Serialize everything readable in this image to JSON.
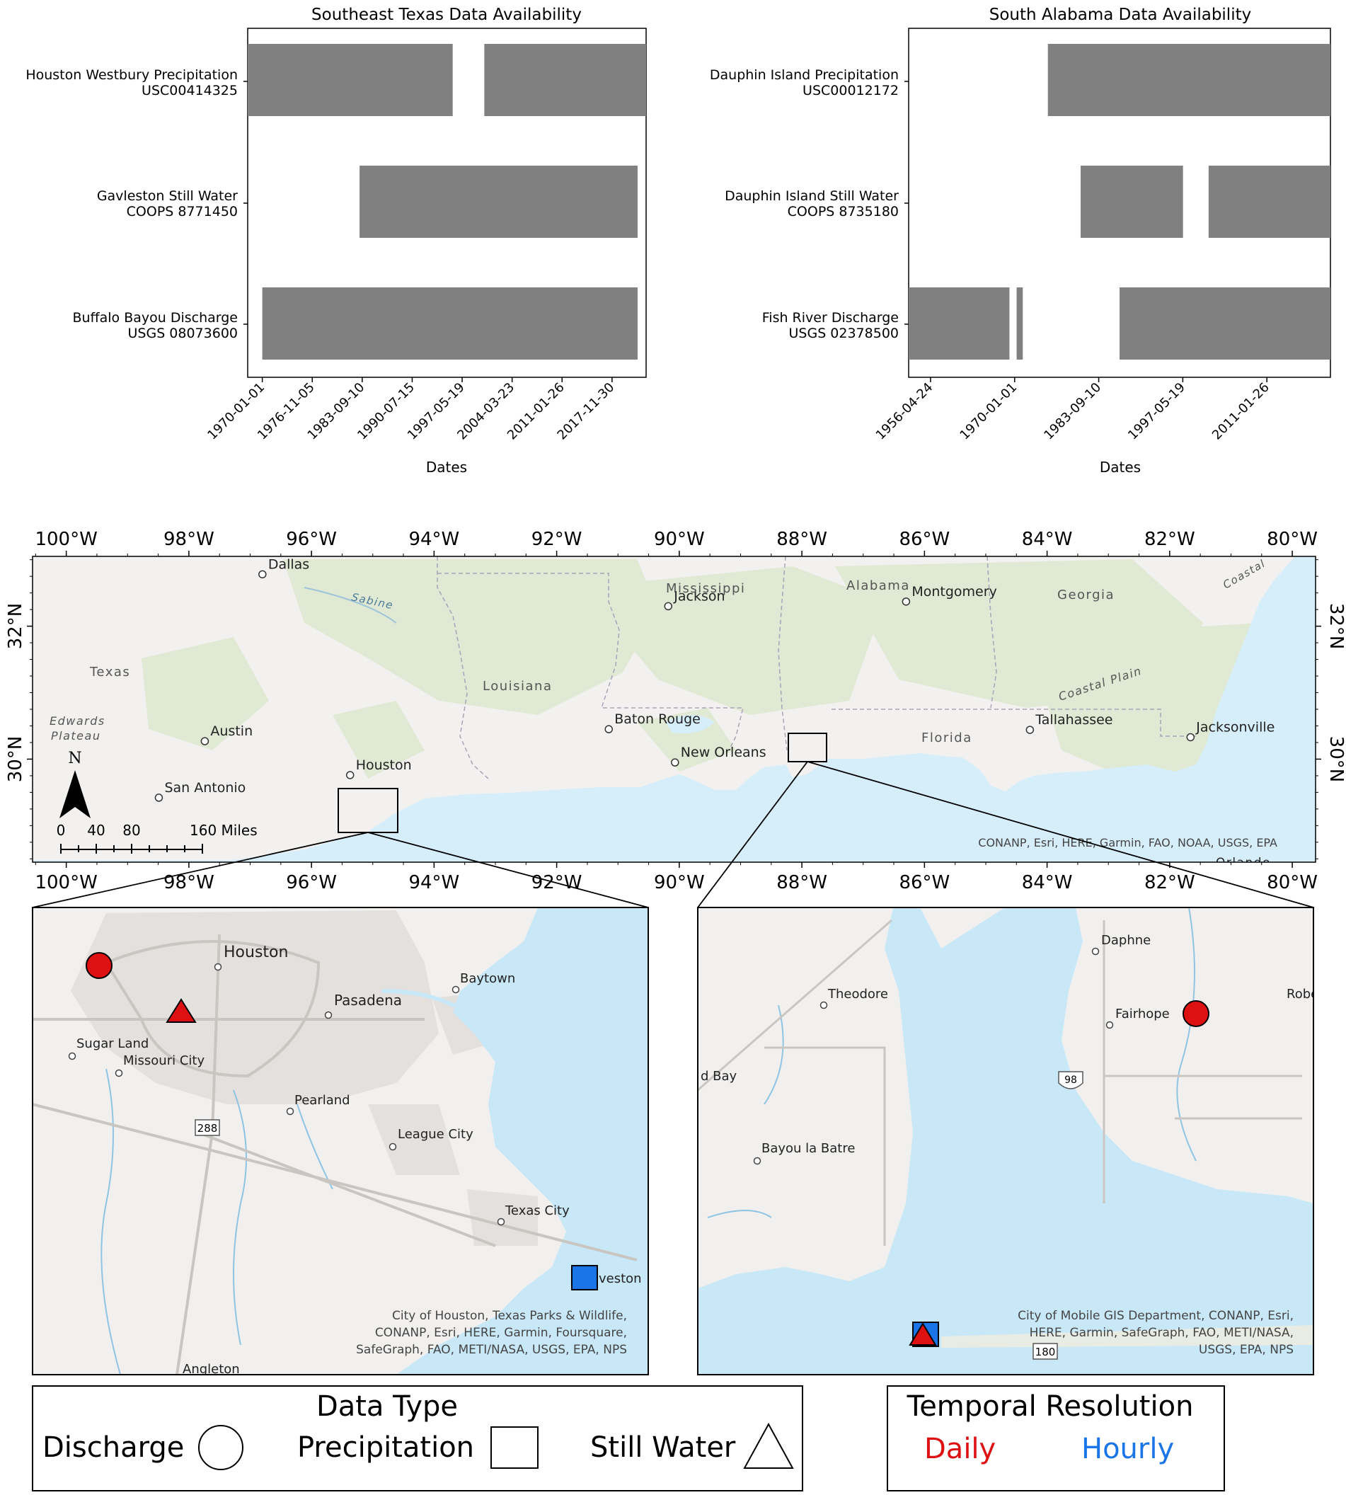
{
  "charts": [
    {
      "title": "Southeast Texas Data Availability",
      "xlabel": "Dates",
      "rows": [
        {
          "line1": "Houston Westbury Precipitation",
          "line2": "USC00414325"
        },
        {
          "line1": "Gavleston Still Water",
          "line2": "COOPS 8771450"
        },
        {
          "line1": "Buffalo Bayou Discharge",
          "line2": "USGS 08073600"
        }
      ],
      "ticks": [
        "1970-01-01",
        "1976-11-05",
        "1983-09-10",
        "1990-07-15",
        "1997-05-19",
        "2004-03-23",
        "2011-01-26",
        "2017-11-30"
      ]
    },
    {
      "title": "South Alabama Data Availability",
      "xlabel": "Dates",
      "rows": [
        {
          "line1": "Dauphin Island Precipitation",
          "line2": "USC00012172"
        },
        {
          "line1": "Dauphin Island Still Water",
          "line2": "COOPS 8735180"
        },
        {
          "line1": "Fish River Discharge",
          "line2": "USGS 02378500"
        }
      ],
      "ticks": [
        "1956-04-24",
        "1970-01-01",
        "1983-09-10",
        "1997-05-19",
        "2011-01-26"
      ]
    }
  ],
  "chart_data": [
    {
      "type": "bar",
      "orientation": "horizontal-timeline",
      "title": "Southeast Texas Data Availability",
      "xlabel": "Dates",
      "x_range": [
        "1968-01-01",
        "2022-08-01"
      ],
      "bar_color": "#808080",
      "series": [
        {
          "name": "Houston Westbury Precipitation USC00414325",
          "periods": [
            [
              "1968-01-01",
              "1996-02-01"
            ],
            [
              "2000-06-01",
              "2022-08-01"
            ]
          ]
        },
        {
          "name": "Gavleston Still Water COOPS 8771450",
          "periods": [
            [
              "1983-05-01",
              "2021-06-01"
            ]
          ]
        },
        {
          "name": "Buffalo Bayou Discharge USGS 08073600",
          "periods": [
            [
              "1970-01-01",
              "2021-06-01"
            ]
          ]
        }
      ]
    },
    {
      "type": "bar",
      "orientation": "horizontal-timeline",
      "title": "South Alabama Data Availability",
      "xlabel": "Dates",
      "x_range": [
        "1952-10-01",
        "2021-06-01"
      ],
      "bar_color": "#808080",
      "series": [
        {
          "name": "Dauphin Island Precipitation USC00012172",
          "periods": [
            [
              "1975-06-01",
              "2021-06-01"
            ]
          ]
        },
        {
          "name": "Dauphin Island Still Water COOPS 8735180",
          "periods": [
            [
              "1980-10-01",
              "1997-06-01"
            ],
            [
              "2001-08-01",
              "2021-06-01"
            ]
          ]
        },
        {
          "name": "Fish River Discharge USGS 02378500",
          "periods": [
            [
              "1952-10-01",
              "1969-03-01"
            ],
            [
              "1970-05-01",
              "1971-05-01"
            ],
            [
              "1987-02-01",
              "2021-06-01"
            ]
          ]
        }
      ]
    }
  ],
  "map": {
    "lon_labels": [
      "100°W",
      "98°W",
      "96°W",
      "94°W",
      "92°W",
      "90°W",
      "88°W",
      "86°W",
      "84°W",
      "82°W",
      "80°W"
    ],
    "lat_labels": [
      "32°N",
      "30°N"
    ],
    "places": [
      {
        "name": "Dallas",
        "lon": -96.8,
        "lat": 32.78,
        "dot": true
      },
      {
        "name": "Jackson",
        "lon": -90.18,
        "lat": 32.3,
        "dot": true
      },
      {
        "name": "Montgomery",
        "lon": -86.3,
        "lat": 32.37,
        "dot": true
      },
      {
        "name": "Austin",
        "lon": -97.74,
        "lat": 30.27,
        "dot": true
      },
      {
        "name": "San Antonio",
        "lon": -98.49,
        "lat": 29.42,
        "dot": true
      },
      {
        "name": "Houston",
        "lon": -95.37,
        "lat": 29.76,
        "dot": true
      },
      {
        "name": "Baton Rouge",
        "lon": -91.15,
        "lat": 30.45,
        "dot": true
      },
      {
        "name": "New Orleans",
        "lon": -90.07,
        "lat": 29.95,
        "dot": true
      },
      {
        "name": "Tallahassee",
        "lon": -84.28,
        "lat": 30.44,
        "dot": true
      },
      {
        "name": "Jacksonville",
        "lon": -81.66,
        "lat": 30.33,
        "dot": true
      }
    ],
    "region_labels": [
      "Texas",
      "Louisiana",
      "Mississippi",
      "Alabama",
      "Georgia",
      "Florida",
      "Edwards",
      "Plateau",
      "Coastal Plain",
      "Sabine",
      "Coastal",
      "Orlando"
    ],
    "north": "N",
    "scale_labels": [
      "0",
      "40",
      "80",
      "160 Miles"
    ],
    "attribution": "CONANP, Esri, HERE, Garmin, FAO, NOAA, USGS, EPA"
  },
  "inset_left": {
    "places": [
      "Houston",
      "Baytown",
      "Pasadena",
      "Sugar Land",
      "Missouri City",
      "Pearland",
      "League City",
      "Texas City",
      "veston",
      "Angleton"
    ],
    "shield": "288",
    "attribution": [
      "City of Houston, Texas Parks & Wildlife,",
      "CONANP, Esri, HERE, Garmin, Foursquare,",
      "SafeGraph, FAO, METI/NASA, USGS, EPA, NPS"
    ]
  },
  "inset_right": {
    "places": [
      "Daphne",
      "Theodore",
      "Fairhope",
      "Robe",
      "d Bay",
      "Bayou la Batre"
    ],
    "shields": [
      "98",
      "180"
    ],
    "attribution": [
      "City of Mobile GIS Department, CONANP, Esri,",
      "HERE, Garmin, SafeGraph, FAO, METI/NASA,",
      "USGS, EPA, NPS"
    ]
  },
  "legend": {
    "data_type_title": "Data Type",
    "discharge": "Discharge",
    "precipitation": "Precipitation",
    "still_water": "Still Water",
    "temporal_title": "Temporal Resolution",
    "daily": "Daily",
    "hourly": "Hourly",
    "daily_color": "#dd1111",
    "hourly_color": "#1a75e8"
  }
}
